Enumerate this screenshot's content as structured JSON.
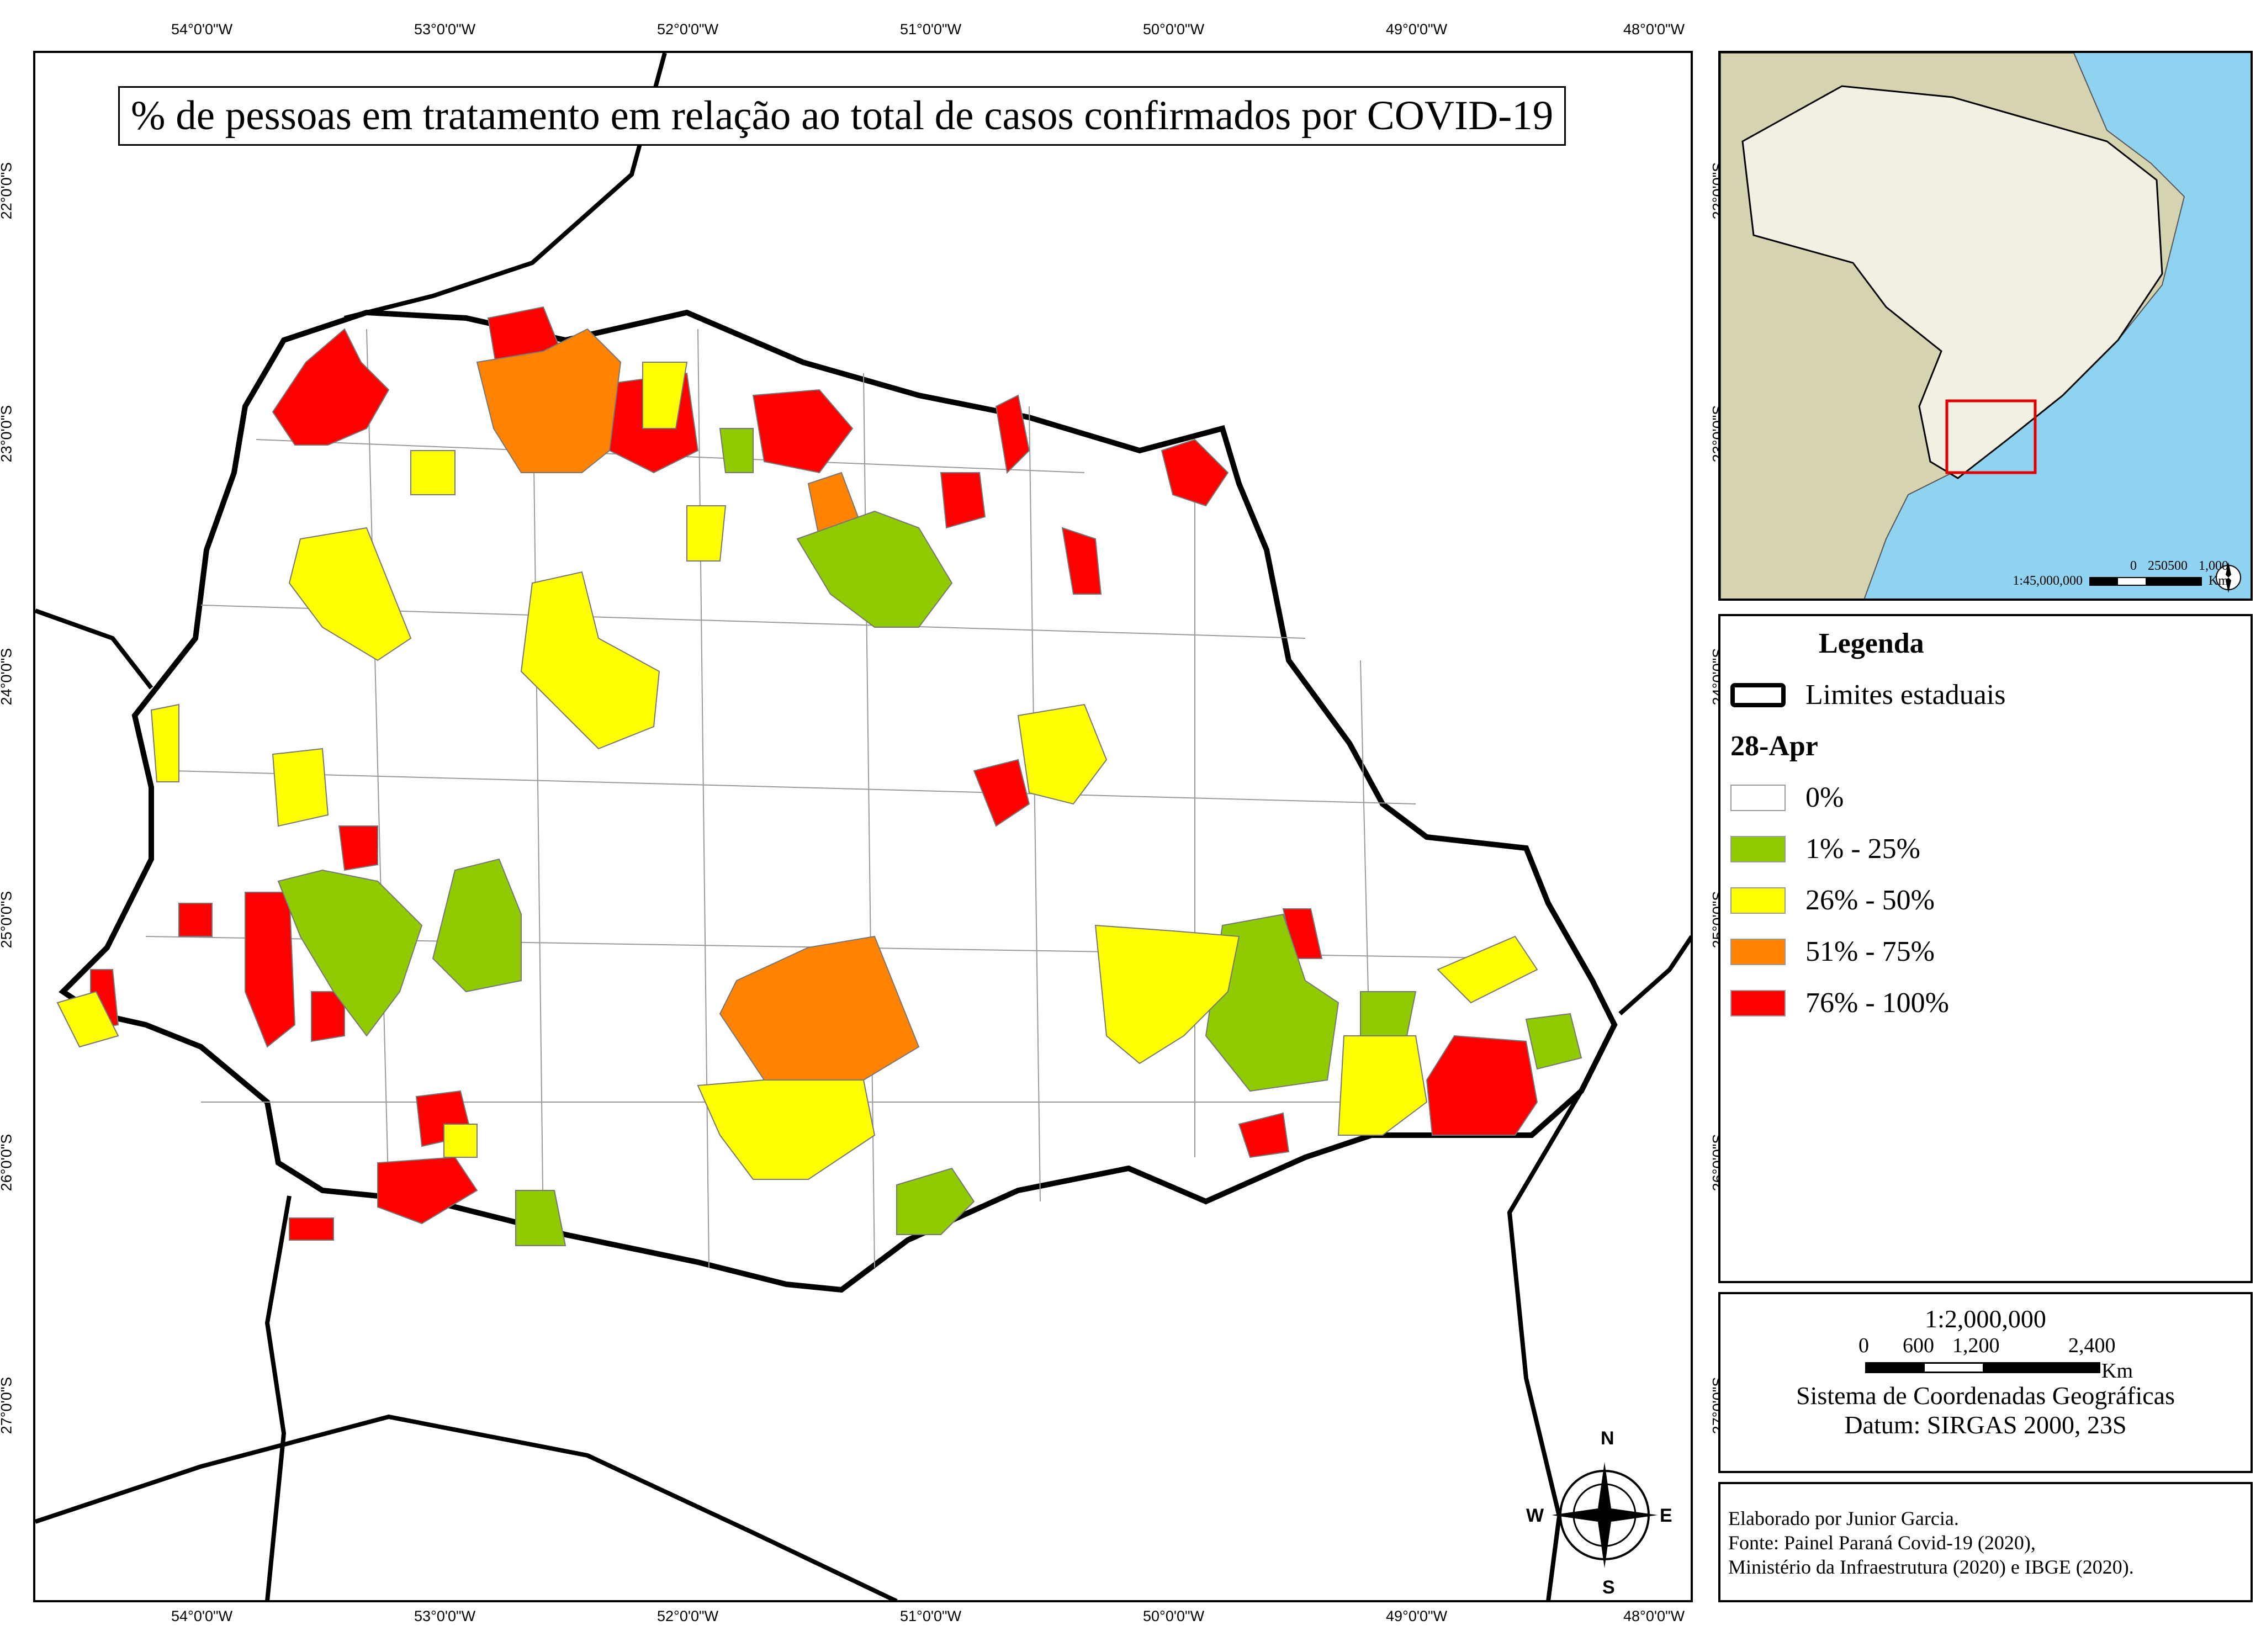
{
  "title": "% de pessoas em tratamento em relação ao total de casos confirmados por COVID-19",
  "lon_ticks": [
    "54°0'0\"W",
    "53°0'0\"W",
    "52°0'0\"W",
    "51°0'0\"W",
    "50°0'0\"W",
    "49°0'0\"W",
    "48°0'0\"W"
  ],
  "lat_ticks": [
    "22°0'0\"S",
    "23°0'0\"S",
    "24°0'0\"S",
    "25°0'0\"S",
    "26°0'0\"S",
    "27°0'0\"S"
  ],
  "compass": {
    "n": "N",
    "s": "S",
    "e": "E",
    "w": "W"
  },
  "inset": {
    "scale_ratio": "1:45,000,000",
    "scale_ticks": [
      "0",
      "250500",
      "1,000"
    ],
    "scale_unit": "Km"
  },
  "legend": {
    "title": "Legenda",
    "boundary_label": "Limites estaduais",
    "date": "28-Apr",
    "classes": [
      {
        "label": "0%",
        "color": "#ffffff"
      },
      {
        "label": "1% - 25%",
        "color": "#8fcb00"
      },
      {
        "label": "26% - 50%",
        "color": "#ffff00"
      },
      {
        "label": "51% - 75%",
        "color": "#ff8200"
      },
      {
        "label": "76% - 100%",
        "color": "#ff0000"
      }
    ]
  },
  "scale": {
    "ratio": "1:2,000,000",
    "ticks": [
      "0",
      "600",
      "1,200",
      "2,400"
    ],
    "unit": "Km",
    "crs": "Sistema de Coordenadas Geográficas",
    "datum": "Datum: SIRGAS 2000, 23S"
  },
  "credits": [
    "Elaborado por Junior Garcia.",
    "Fonte: Painel Paraná Covid-19 (2020),",
    "Ministério da Infraestrutura (2020) e IBGE (2020)."
  ]
}
